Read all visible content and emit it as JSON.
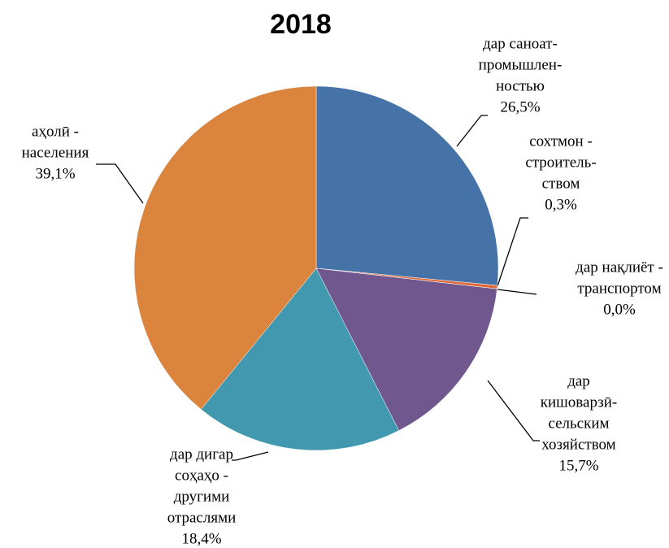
{
  "chart_data": {
    "type": "pie",
    "title": "2018",
    "categories": [
      [
        "дар саноат-",
        "промышлен-",
        "ностью"
      ],
      [
        "сохтмон -",
        "строитель-",
        "ством"
      ],
      [
        "дар нақлиёт -",
        "транспортом"
      ],
      [
        "дар",
        "кишоварзӣ-",
        "сельским",
        "хозяйством"
      ],
      [
        "дар дигар",
        "соҳаҳо -",
        "другими",
        "отраслями"
      ],
      [
        "аҳолӣ -",
        "населения"
      ]
    ],
    "values": [
      26.5,
      0.3,
      0.0,
      15.7,
      18.4,
      39.1
    ],
    "value_labels": [
      "26,5%",
      "0,3%",
      "0,0%",
      "15,7%",
      "18,4%",
      "39,1%"
    ],
    "colors": [
      "#4572a7",
      "#e0693a",
      "#9bbb59",
      "#70588f",
      "#4198af",
      "#db843d"
    ]
  }
}
